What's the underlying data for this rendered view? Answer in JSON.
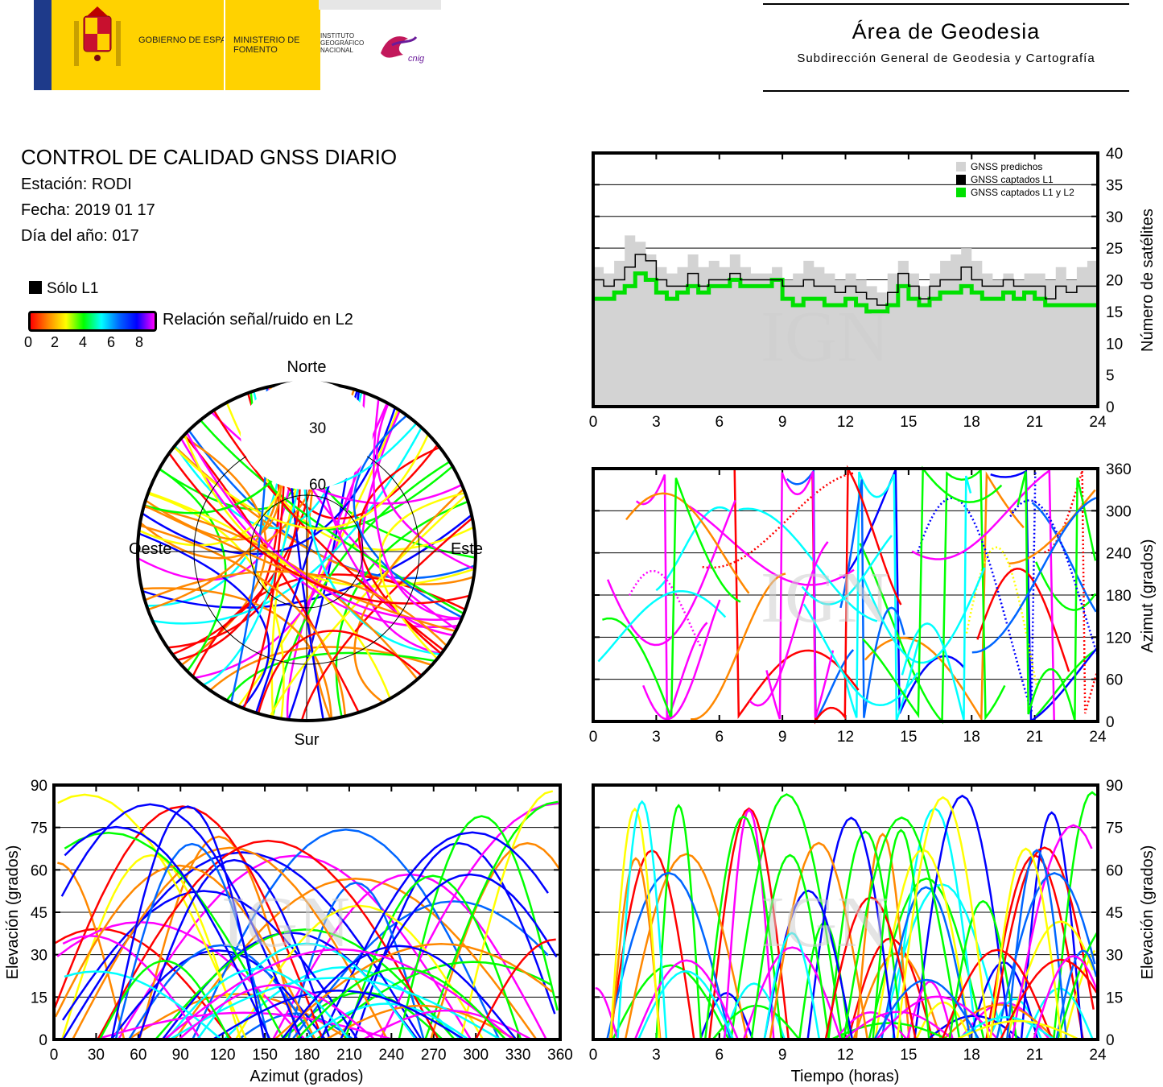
{
  "header": {
    "gobierno": "GOBIERNO DE ESPAÑA",
    "ministerio": "MINISTERIO DE FOMENTO",
    "instituto": "INSTITUTO GEOGRÁFICO NACIONAL",
    "cnig": "cnig",
    "area_title": "Área de Geodesia",
    "area_subtitle": "Subdirección General de Geodesia y Cartografía"
  },
  "info": {
    "title": "CONTROL DE CALIDAD GNSS DIARIO",
    "station": "Estación: RODI",
    "date": "Fecha: 2019 01 17",
    "doy": "Día del año: 017"
  },
  "legend": {
    "l1_only": "Sólo L1",
    "snr_label": "Relación señal/ruido en L2",
    "snr_ticks": [
      "0",
      "2",
      "4",
      "6",
      "8"
    ],
    "snr_colors": [
      "#ff0000",
      "#ff8800",
      "#ffff00",
      "#00ff00",
      "#00ffff",
      "#0066ff",
      "#0000ff",
      "#ff00ff"
    ]
  },
  "watermark": "IGN",
  "chart_data": [
    {
      "type": "line",
      "id": "satellites",
      "ylabel": "Número de satélites",
      "xlim": [
        0,
        24
      ],
      "ylim": [
        0,
        40
      ],
      "xticks": [
        0,
        3,
        6,
        9,
        12,
        15,
        18,
        21,
        24
      ],
      "yticks": [
        0,
        5,
        10,
        15,
        20,
        25,
        30,
        35,
        40
      ],
      "legend_position": "top-right",
      "series": [
        {
          "name": "GNSS predichos",
          "color": "#d3d3d3",
          "x": [
            0,
            0.5,
            1,
            1.5,
            2,
            2.5,
            3,
            3.5,
            4,
            4.5,
            5,
            5.5,
            6,
            6.5,
            7,
            7.5,
            8,
            8.5,
            9,
            9.5,
            10,
            10.5,
            11,
            11.5,
            12,
            12.5,
            13,
            13.5,
            14,
            14.5,
            15,
            15.5,
            16,
            16.5,
            17,
            17.5,
            18,
            18.5,
            19,
            19.5,
            20,
            20.5,
            21,
            21.5,
            22,
            22.5,
            23,
            23.5,
            24
          ],
          "y": [
            22,
            21,
            23,
            27,
            26,
            24,
            22,
            21,
            22,
            24,
            22,
            23,
            22,
            24,
            22,
            21,
            21,
            22,
            20,
            21,
            23,
            22,
            21,
            20,
            21,
            20,
            19,
            18,
            21,
            23,
            21,
            19,
            21,
            23,
            24,
            25,
            23,
            21,
            20,
            21,
            20,
            21,
            21,
            20,
            22,
            20,
            22,
            23,
            21
          ]
        },
        {
          "name": "GNSS captados L1",
          "color": "#000000",
          "x": [
            0,
            0.5,
            1,
            1.5,
            2,
            2.5,
            3,
            3.5,
            4,
            4.5,
            5,
            5.5,
            6,
            6.5,
            7,
            7.5,
            8,
            8.5,
            9,
            9.5,
            10,
            10.5,
            11,
            11.5,
            12,
            12.5,
            13,
            13.5,
            14,
            14.5,
            15,
            15.5,
            16,
            16.5,
            17,
            17.5,
            18,
            18.5,
            19,
            19.5,
            20,
            20.5,
            21,
            21.5,
            22,
            22.5,
            23,
            23.5,
            24
          ],
          "y": [
            20,
            19,
            20,
            22,
            24,
            23,
            20,
            19,
            19,
            21,
            19,
            20,
            20,
            21,
            20,
            20,
            20,
            20,
            19,
            19,
            20,
            19,
            19,
            18,
            19,
            18,
            17,
            16,
            18,
            21,
            19,
            17,
            19,
            20,
            20,
            22,
            20,
            19,
            19,
            20,
            19,
            19,
            19,
            17,
            19,
            18,
            19,
            19,
            18
          ]
        },
        {
          "name": "GNSS captados L1 y L2",
          "color": "#00e000",
          "x": [
            0,
            0.5,
            1,
            1.5,
            2,
            2.5,
            3,
            3.5,
            4,
            4.5,
            5,
            5.5,
            6,
            6.5,
            7,
            7.5,
            8,
            8.5,
            9,
            9.5,
            10,
            10.5,
            11,
            11.5,
            12,
            12.5,
            13,
            13.5,
            14,
            14.5,
            15,
            15.5,
            16,
            16.5,
            17,
            17.5,
            18,
            18.5,
            19,
            19.5,
            20,
            20.5,
            21,
            21.5,
            22,
            22.5,
            23,
            23.5,
            24
          ],
          "y": [
            17,
            17,
            18,
            19,
            21,
            20,
            18,
            17,
            18,
            19,
            18,
            19,
            19,
            20,
            19,
            19,
            19,
            20,
            17,
            16,
            17,
            17,
            16,
            16,
            17,
            16,
            15,
            15,
            16,
            19,
            17,
            16,
            17,
            18,
            18,
            19,
            18,
            17,
            17,
            18,
            17,
            18,
            17,
            16,
            16,
            16,
            16,
            16,
            16
          ]
        }
      ]
    },
    {
      "type": "scatter",
      "id": "azimuth_vs_time",
      "ylabel": "Azimut (grados)",
      "xlim": [
        0,
        24
      ],
      "ylim": [
        0,
        360
      ],
      "xticks": [
        0,
        3,
        6,
        9,
        12,
        15,
        18,
        21,
        24
      ],
      "yticks": [
        0,
        60,
        120,
        180,
        240,
        300,
        360
      ]
    },
    {
      "type": "scatter",
      "id": "skyplot",
      "labels": {
        "north": "Norte",
        "south": "Sur",
        "east": "Este",
        "west": "Oeste"
      },
      "rings": [
        "30",
        "60"
      ]
    },
    {
      "type": "scatter",
      "id": "elevation_vs_azimuth",
      "xlabel": "Azimut (grados)",
      "ylabel": "Elevación (grados)",
      "xlim": [
        0,
        360
      ],
      "ylim": [
        0,
        90
      ],
      "xticks": [
        0,
        30,
        60,
        90,
        120,
        150,
        180,
        210,
        240,
        270,
        300,
        330,
        360
      ],
      "yticks": [
        0,
        15,
        30,
        45,
        60,
        75,
        90
      ]
    },
    {
      "type": "scatter",
      "id": "elevation_vs_time",
      "xlabel": "Tiempo (horas)",
      "ylabel": "Elevación (grados)",
      "xlim": [
        0,
        24
      ],
      "ylim": [
        0,
        90
      ],
      "xticks": [
        0,
        3,
        6,
        9,
        12,
        15,
        18,
        21,
        24
      ],
      "yticks": [
        0,
        15,
        30,
        45,
        60,
        75,
        90
      ]
    }
  ]
}
